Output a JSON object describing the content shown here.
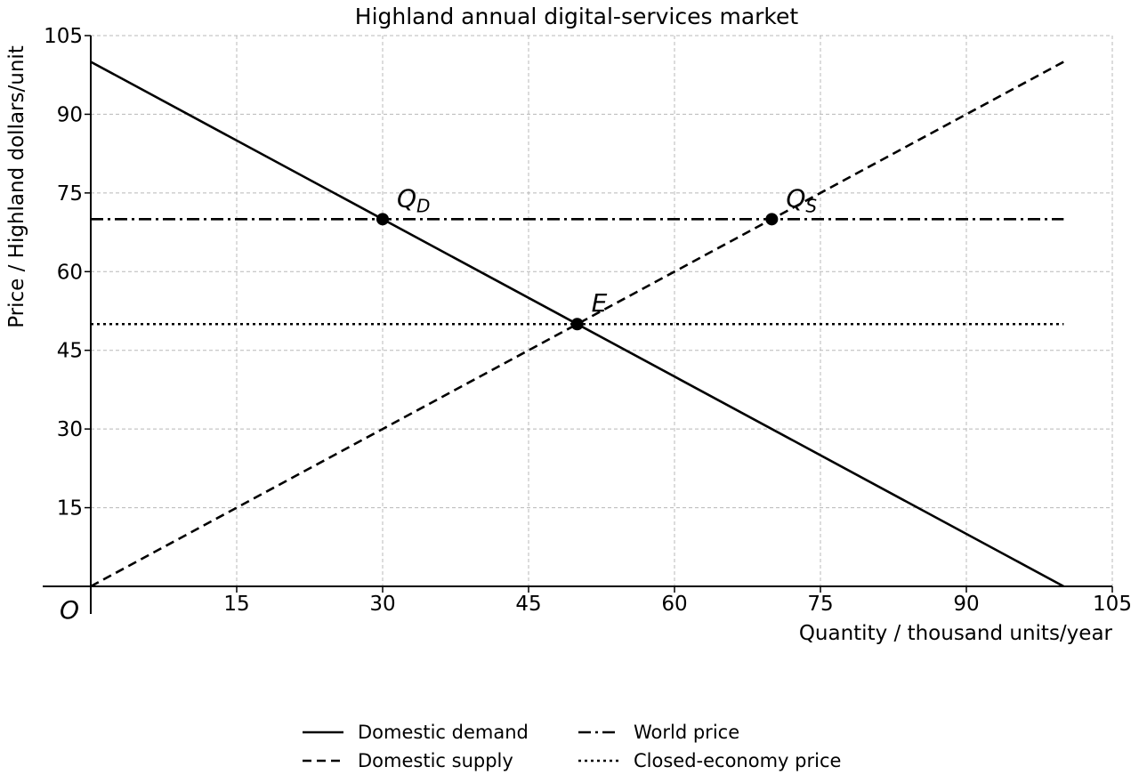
{
  "chart_data": {
    "type": "line",
    "title": "Highland annual digital-services market",
    "xlabel": "Quantity / thousand units/year",
    "ylabel": "Price / Highland dollars/unit",
    "origin_label": "O",
    "xlim": [
      0,
      105
    ],
    "ylim": [
      0,
      105
    ],
    "x_ticks": [
      15,
      30,
      45,
      60,
      75,
      90,
      105
    ],
    "y_ticks": [
      15,
      30,
      45,
      60,
      75,
      90,
      105
    ],
    "grid": true,
    "legend_position": "bottom",
    "series": [
      {
        "name": "Domestic demand",
        "style": "solid",
        "color": "#000000",
        "points": [
          [
            0,
            100
          ],
          [
            100,
            0
          ]
        ]
      },
      {
        "name": "Domestic supply",
        "style": "dashed",
        "color": "#000000",
        "points": [
          [
            0,
            0
          ],
          [
            100,
            100
          ]
        ]
      },
      {
        "name": "World price",
        "style": "dashdot",
        "color": "#000000",
        "points": [
          [
            0,
            70
          ],
          [
            100,
            70
          ]
        ]
      },
      {
        "name": "Closed-economy price",
        "style": "dotted",
        "color": "#000000",
        "points": [
          [
            0,
            50
          ],
          [
            100,
            50
          ]
        ]
      }
    ],
    "points": [
      {
        "label": "Q",
        "sub": "D",
        "x": 30,
        "y": 70
      },
      {
        "label": "Q",
        "sub": "S",
        "x": 70,
        "y": 70
      },
      {
        "label": "E",
        "sub": "",
        "x": 50,
        "y": 50
      }
    ]
  }
}
